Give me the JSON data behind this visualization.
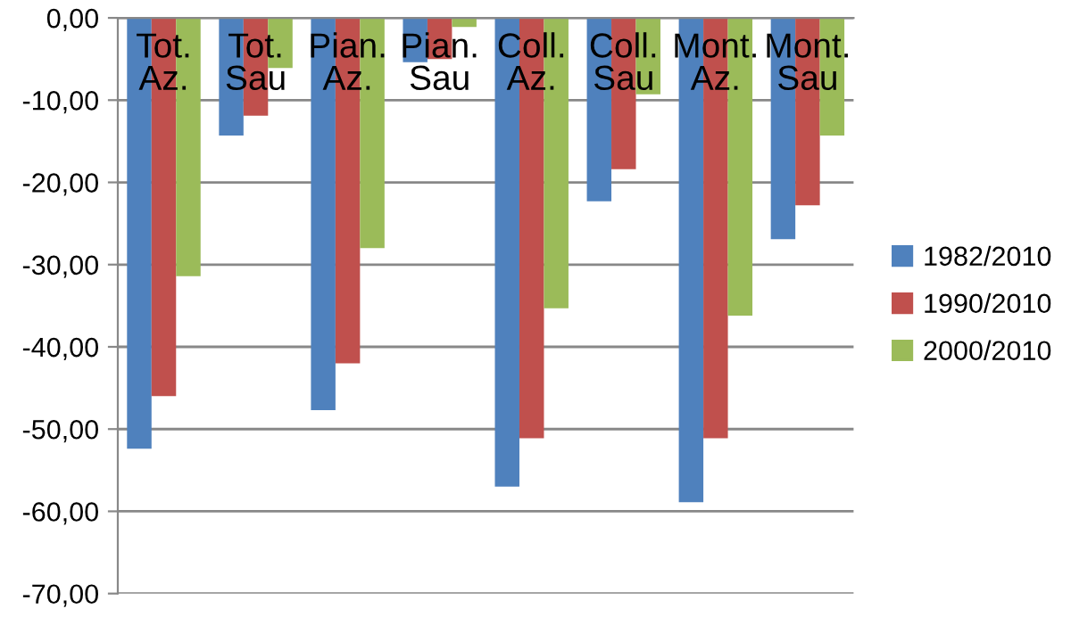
{
  "chart_data": {
    "type": "bar",
    "categories": [
      "Tot.\nAz.",
      "Tot.\nSau",
      "Pian.\nAz.",
      "Pian.\nSau",
      "Coll.\nAz.",
      "Coll.\nSau",
      "Mont.\nAz.",
      "Mont.\nSau"
    ],
    "series": [
      {
        "name": "1982/2010",
        "color": "#4f81bd",
        "values": [
          -52.4,
          -14.3,
          -47.7,
          -5.4,
          -57.0,
          -22.3,
          -58.9,
          -26.9
        ]
      },
      {
        "name": "1990/2010",
        "color": "#c0504d",
        "values": [
          -46.0,
          -11.9,
          -42.0,
          -5.0,
          -51.1,
          -18.4,
          -51.1,
          -22.8
        ]
      },
      {
        "name": "2000/2010",
        "color": "#9bbb59",
        "values": [
          -31.4,
          -6.1,
          -28.0,
          -1.1,
          -35.3,
          -9.3,
          -36.2,
          -14.3
        ]
      }
    ],
    "ylim": [
      -70,
      0
    ],
    "yticks": [
      {
        "value": 0,
        "label": "0,00"
      },
      {
        "value": -10,
        "label": "-10,00"
      },
      {
        "value": -20,
        "label": "-20,00"
      },
      {
        "value": -30,
        "label": "-30,00"
      },
      {
        "value": -40,
        "label": "-40,00"
      },
      {
        "value": -50,
        "label": "-50,00"
      },
      {
        "value": -60,
        "label": "-60,00"
      },
      {
        "value": -70,
        "label": "-70,00"
      }
    ],
    "grid": "y",
    "legend": "right"
  }
}
